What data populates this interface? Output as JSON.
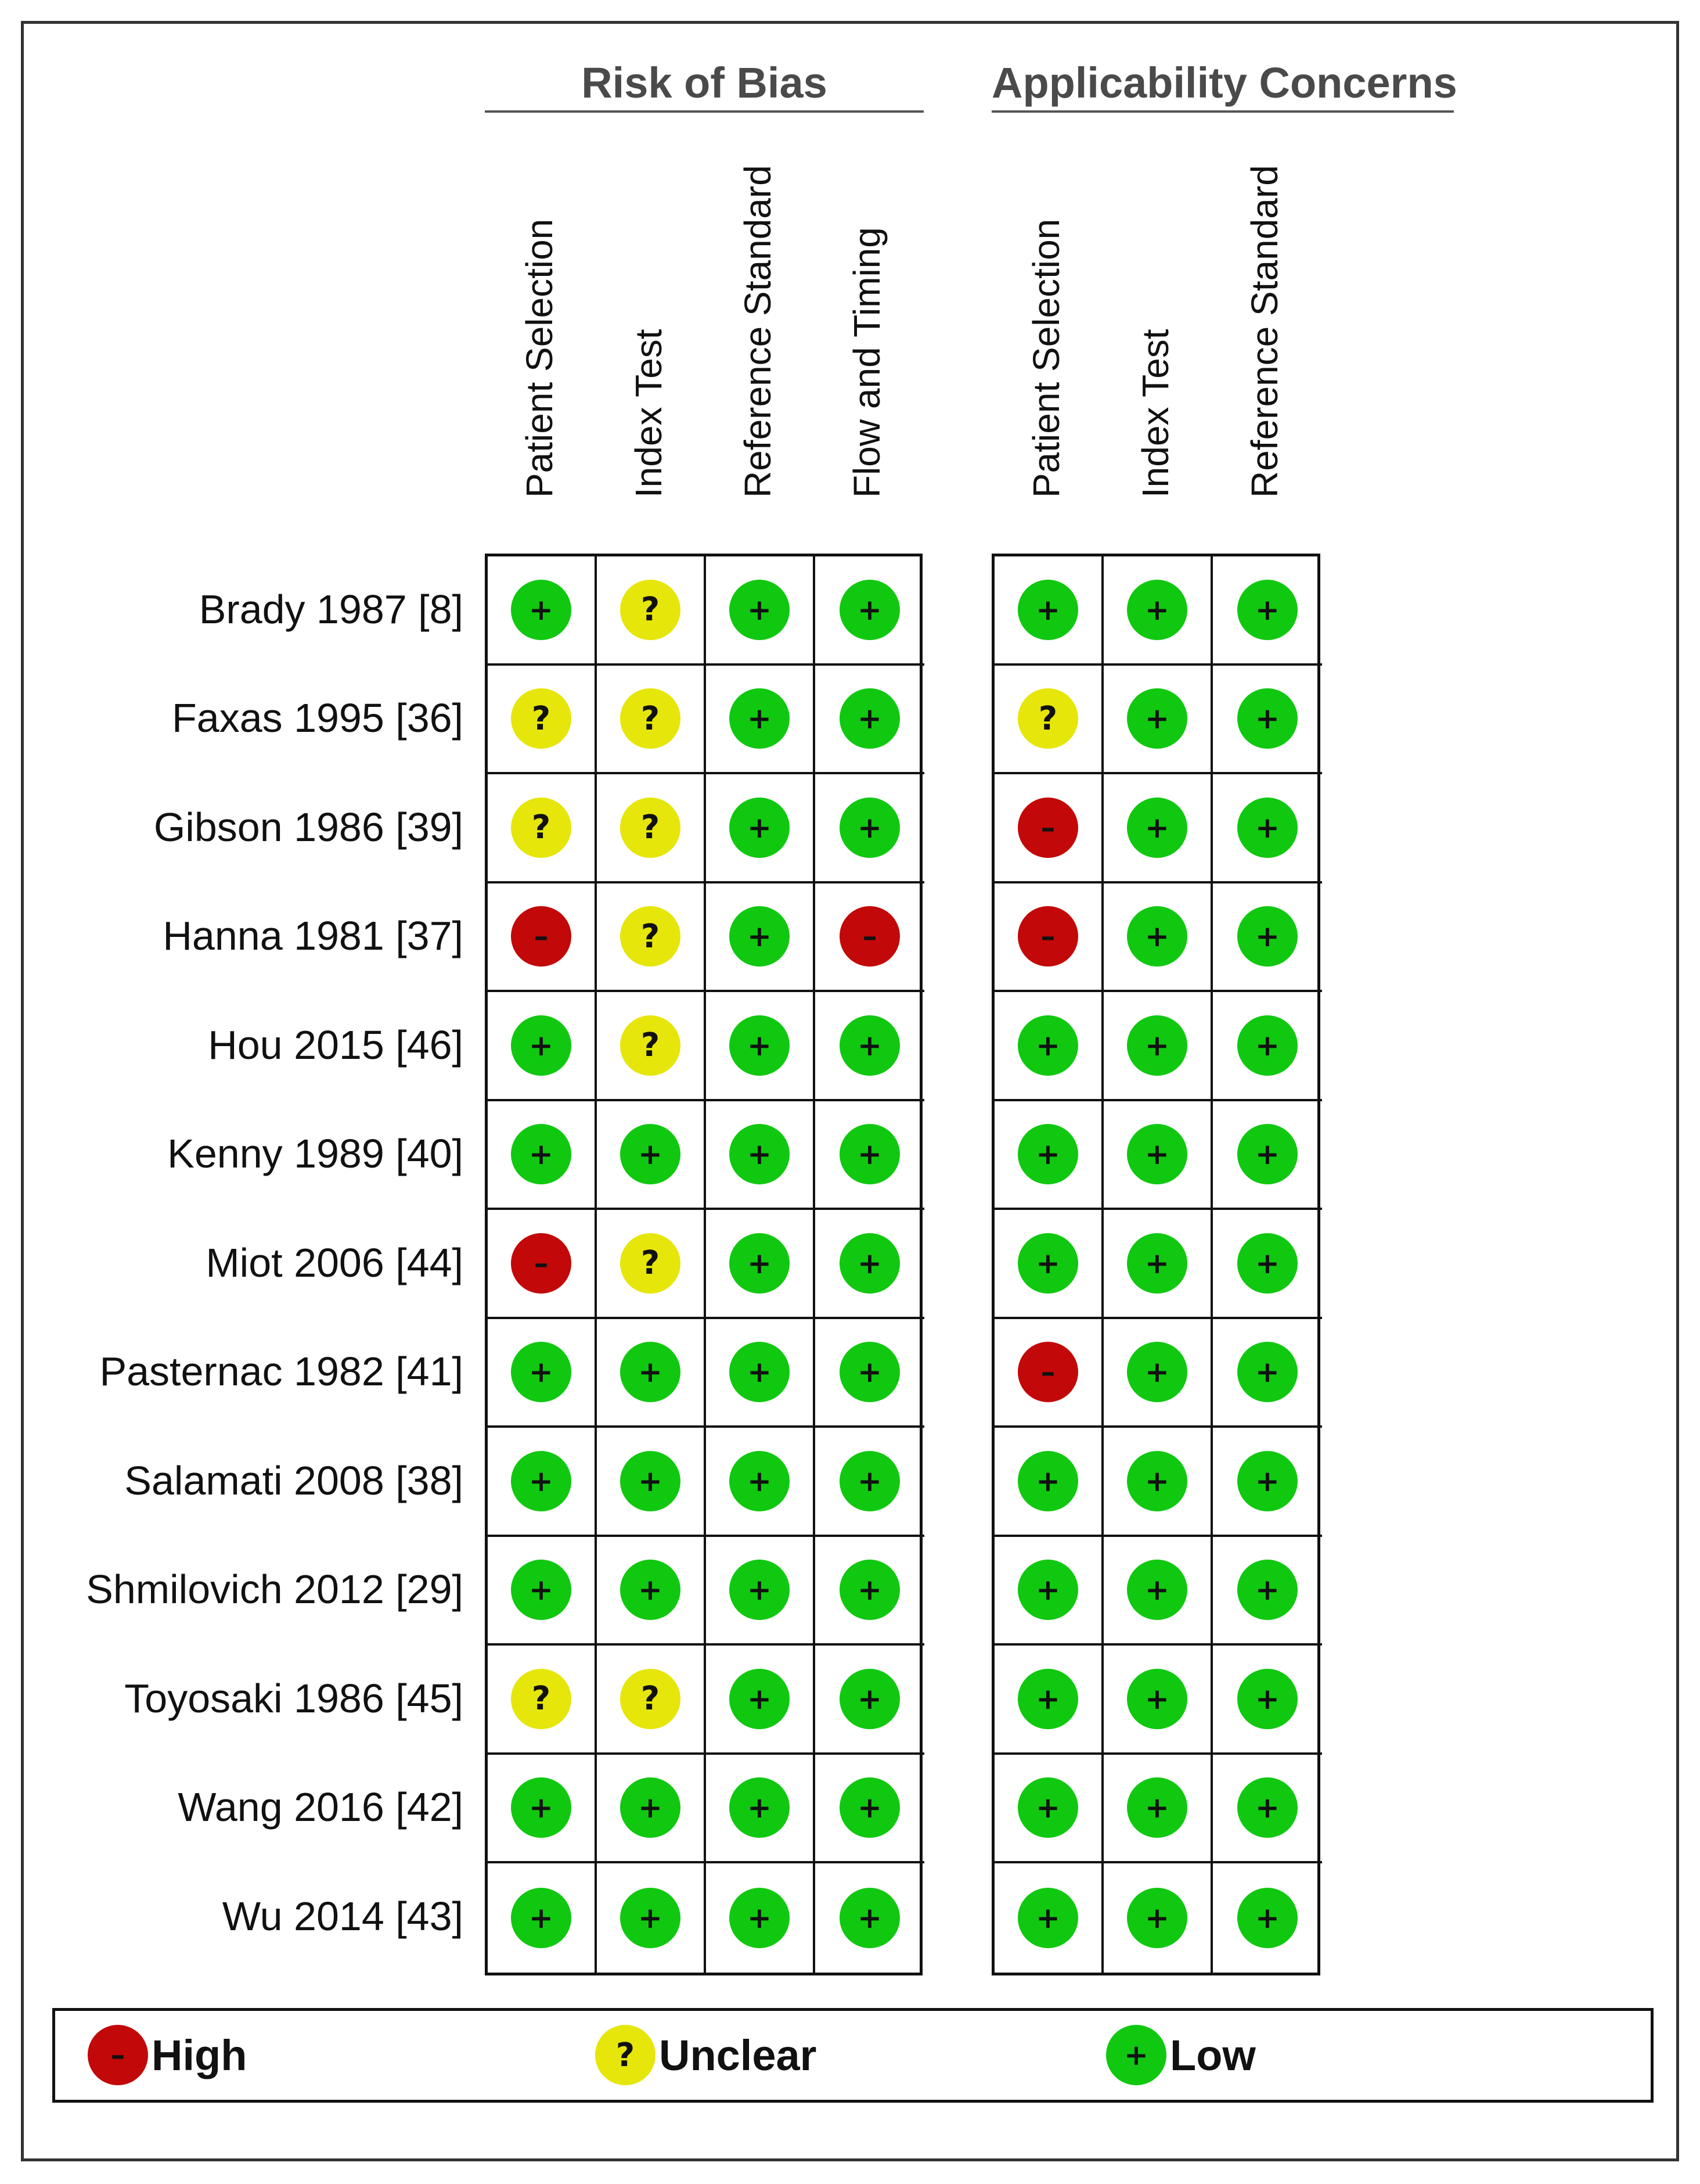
{
  "groups": {
    "risk_of_bias": "Risk of Bias",
    "applicability": "Applicability Concerns"
  },
  "columns": {
    "risk_of_bias": [
      "Patient Selection",
      "Index Test",
      "Reference Standard",
      "Flow and Timing"
    ],
    "applicability": [
      "Patient Selection",
      "Index Test",
      "Reference Standard"
    ]
  },
  "symbols": {
    "low": "+",
    "unclear": "?",
    "high": "–"
  },
  "colors": {
    "low": "#10c810",
    "unclear": "#e6e60a",
    "high": "#c20808"
  },
  "studies": [
    {
      "label": "Brady 1987 [8]",
      "rob": [
        "low",
        "unclear",
        "low",
        "low"
      ],
      "app": [
        "low",
        "low",
        "low"
      ]
    },
    {
      "label": "Faxas 1995 [36]",
      "rob": [
        "unclear",
        "unclear",
        "low",
        "low"
      ],
      "app": [
        "unclear",
        "low",
        "low"
      ]
    },
    {
      "label": "Gibson 1986 [39]",
      "rob": [
        "unclear",
        "unclear",
        "low",
        "low"
      ],
      "app": [
        "high",
        "low",
        "low"
      ]
    },
    {
      "label": "Hanna 1981 [37]",
      "rob": [
        "high",
        "unclear",
        "low",
        "high"
      ],
      "app": [
        "high",
        "low",
        "low"
      ]
    },
    {
      "label": "Hou 2015 [46]",
      "rob": [
        "low",
        "unclear",
        "low",
        "low"
      ],
      "app": [
        "low",
        "low",
        "low"
      ]
    },
    {
      "label": "Kenny 1989 [40]",
      "rob": [
        "low",
        "low",
        "low",
        "low"
      ],
      "app": [
        "low",
        "low",
        "low"
      ]
    },
    {
      "label": "Miot 2006 [44]",
      "rob": [
        "high",
        "unclear",
        "low",
        "low"
      ],
      "app": [
        "low",
        "low",
        "low"
      ]
    },
    {
      "label": "Pasternac 1982 [41]",
      "rob": [
        "low",
        "low",
        "low",
        "low"
      ],
      "app": [
        "high",
        "low",
        "low"
      ]
    },
    {
      "label": "Salamati 2008 [38]",
      "rob": [
        "low",
        "low",
        "low",
        "low"
      ],
      "app": [
        "low",
        "low",
        "low"
      ]
    },
    {
      "label": "Shmilovich 2012 [29]",
      "rob": [
        "low",
        "low",
        "low",
        "low"
      ],
      "app": [
        "low",
        "low",
        "low"
      ]
    },
    {
      "label": "Toyosaki 1986 [45]",
      "rob": [
        "unclear",
        "unclear",
        "low",
        "low"
      ],
      "app": [
        "low",
        "low",
        "low"
      ]
    },
    {
      "label": "Wang 2016 [42]",
      "rob": [
        "low",
        "low",
        "low",
        "low"
      ],
      "app": [
        "low",
        "low",
        "low"
      ]
    },
    {
      "label": "Wu 2014 [43]",
      "rob": [
        "low",
        "low",
        "low",
        "low"
      ],
      "app": [
        "low",
        "low",
        "low"
      ]
    }
  ],
  "legend": {
    "high": "High",
    "unclear": "Unclear",
    "low": "Low"
  }
}
